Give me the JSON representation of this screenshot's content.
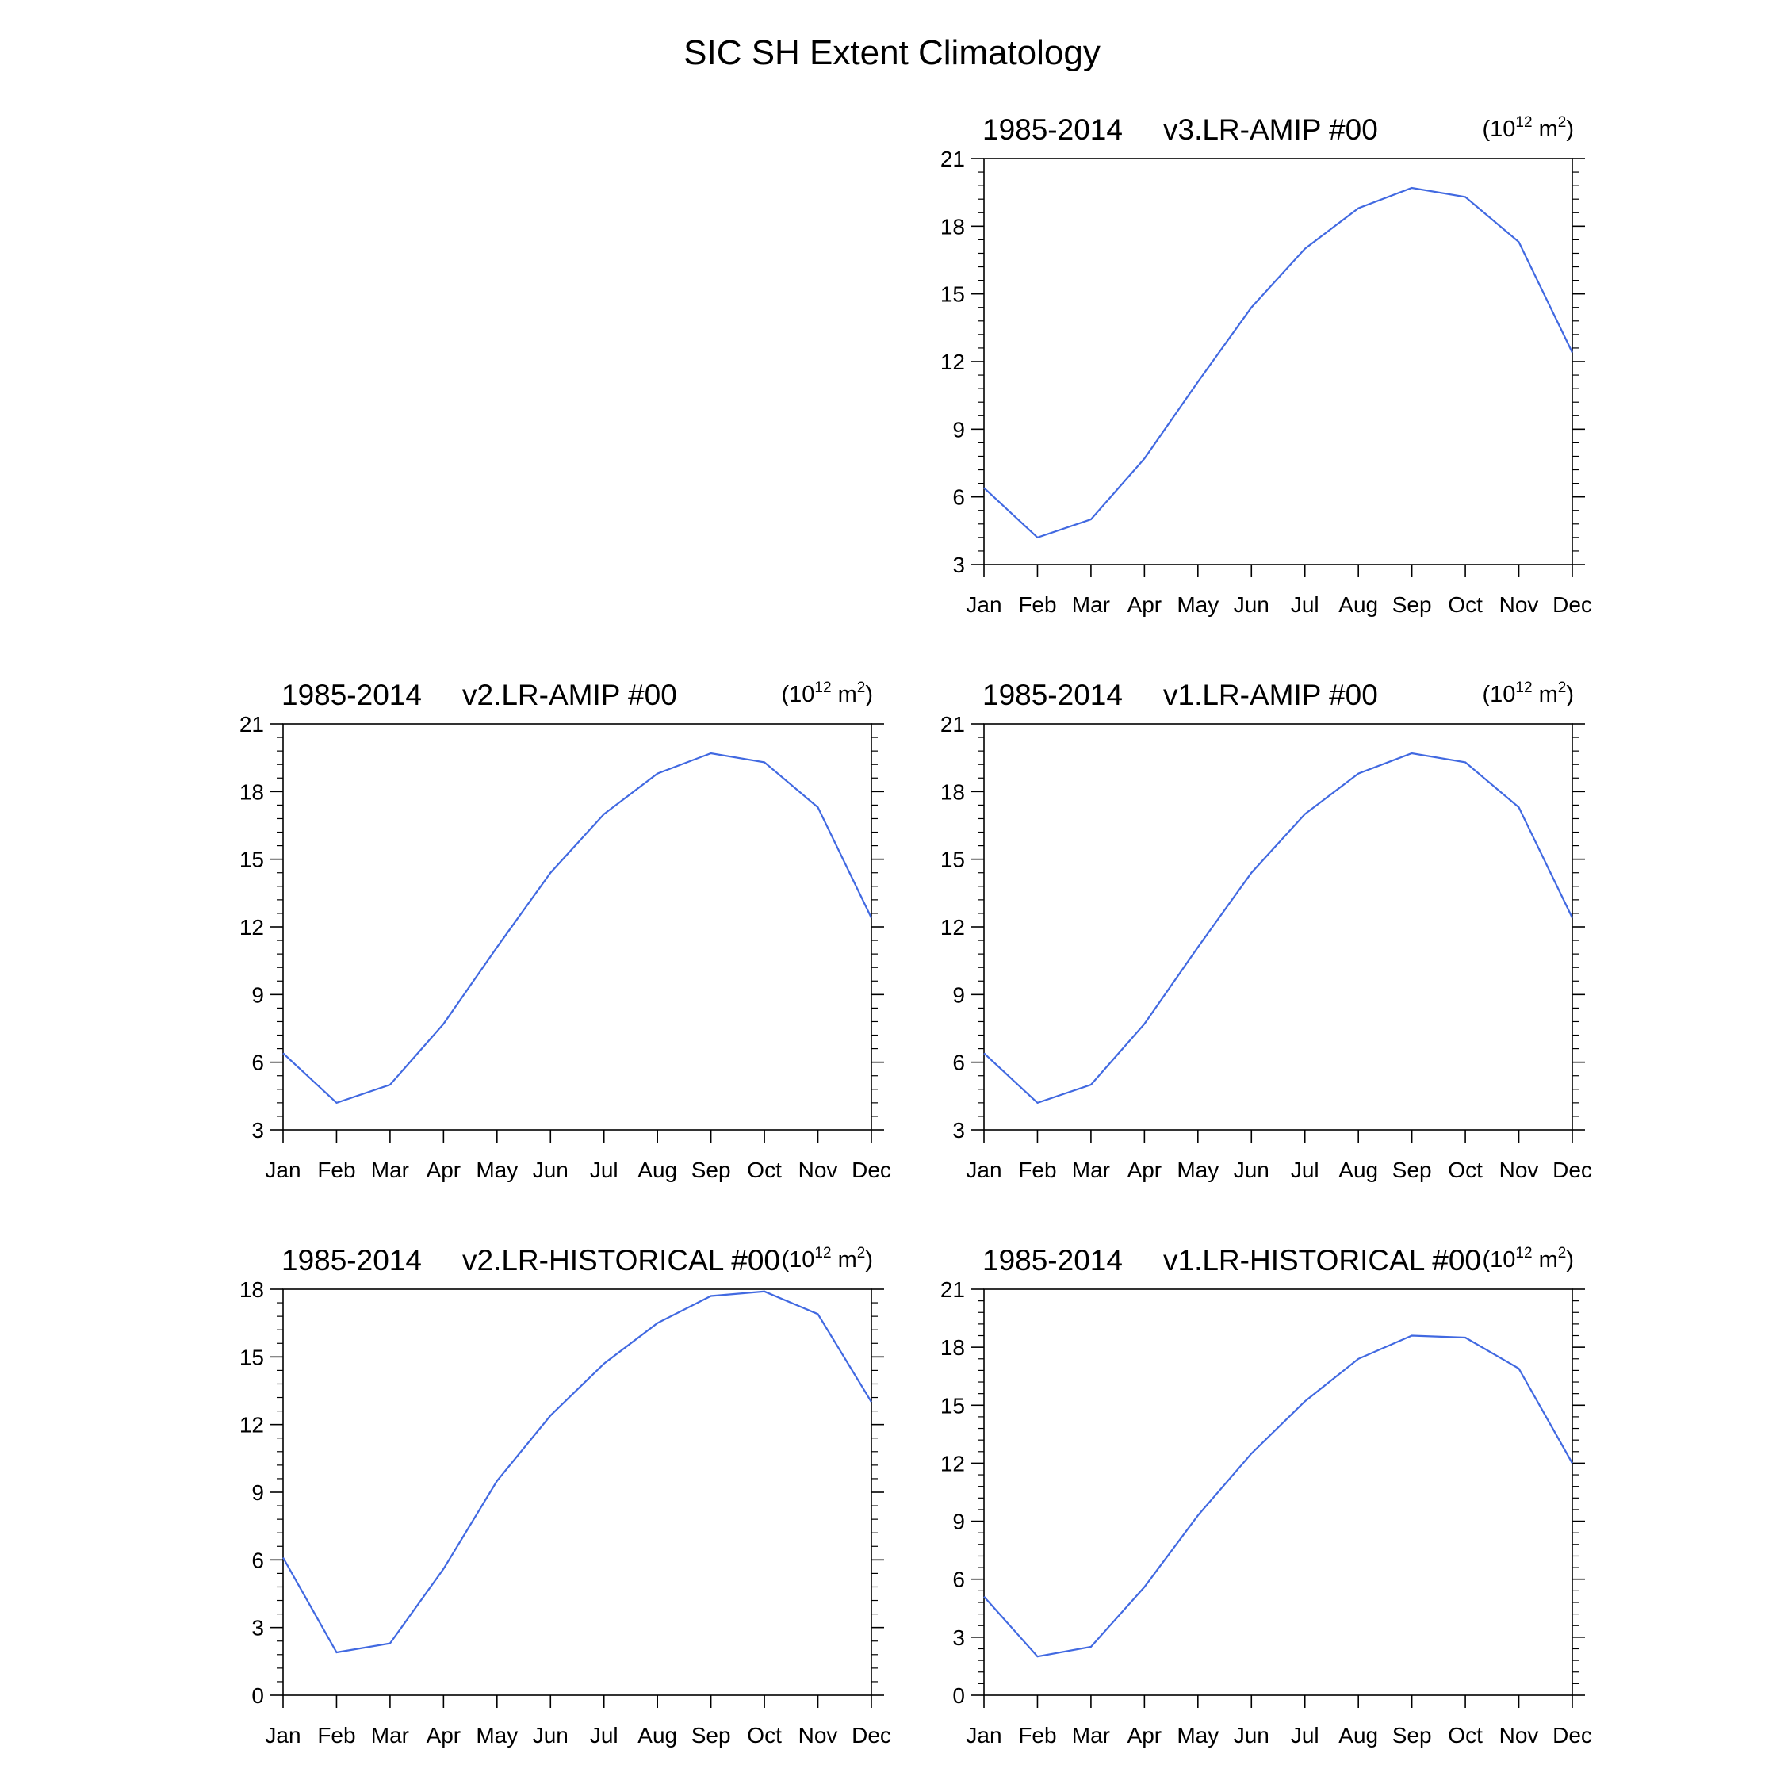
{
  "figure": {
    "title": "SIC SH Extent Climatology"
  },
  "chart_data": [
    {
      "type": "line",
      "panel": "top-right",
      "period": "1985-2014",
      "case": "v3.LR-AMIP  #00",
      "units": "(10^12 m^2)",
      "units_parts": {
        "open": "(10",
        "exp": "12",
        "mid": " m",
        "exp2": "2",
        "close": ")"
      },
      "categories": [
        "Jan",
        "Feb",
        "Mar",
        "Apr",
        "May",
        "Jun",
        "Jul",
        "Aug",
        "Sep",
        "Oct",
        "Nov",
        "Dec"
      ],
      "series": [
        {
          "values": [
            6.4,
            4.2,
            5.0,
            7.7,
            11.1,
            14.4,
            17.0,
            18.8,
            19.7,
            19.3,
            17.3,
            12.4
          ],
          "color": "#4169e1"
        }
      ],
      "ylim": [
        3,
        21
      ],
      "yticks": [
        3,
        6,
        9,
        12,
        15,
        18,
        21
      ],
      "grid": false,
      "legend": "none"
    },
    {
      "type": "line",
      "panel": "middle-left",
      "period": "1985-2014",
      "case": "v2.LR-AMIP  #00",
      "units": "(10^12 m^2)",
      "units_parts": {
        "open": "(10",
        "exp": "12",
        "mid": " m",
        "exp2": "2",
        "close": ")"
      },
      "categories": [
        "Jan",
        "Feb",
        "Mar",
        "Apr",
        "May",
        "Jun",
        "Jul",
        "Aug",
        "Sep",
        "Oct",
        "Nov",
        "Dec"
      ],
      "series": [
        {
          "values": [
            6.4,
            4.2,
            5.0,
            7.7,
            11.1,
            14.4,
            17.0,
            18.8,
            19.7,
            19.3,
            17.3,
            12.4
          ],
          "color": "#4169e1"
        }
      ],
      "ylim": [
        3,
        21
      ],
      "yticks": [
        3,
        6,
        9,
        12,
        15,
        18,
        21
      ],
      "grid": false,
      "legend": "none"
    },
    {
      "type": "line",
      "panel": "middle-right",
      "period": "1985-2014",
      "case": "v1.LR-AMIP  #00",
      "units": "(10^12 m^2)",
      "units_parts": {
        "open": "(10",
        "exp": "12",
        "mid": " m",
        "exp2": "2",
        "close": ")"
      },
      "categories": [
        "Jan",
        "Feb",
        "Mar",
        "Apr",
        "May",
        "Jun",
        "Jul",
        "Aug",
        "Sep",
        "Oct",
        "Nov",
        "Dec"
      ],
      "series": [
        {
          "values": [
            6.4,
            4.2,
            5.0,
            7.7,
            11.1,
            14.4,
            17.0,
            18.8,
            19.7,
            19.3,
            17.3,
            12.4
          ],
          "color": "#4169e1"
        }
      ],
      "ylim": [
        3,
        21
      ],
      "yticks": [
        3,
        6,
        9,
        12,
        15,
        18,
        21
      ],
      "grid": false,
      "legend": "none"
    },
    {
      "type": "line",
      "panel": "bottom-left",
      "period": "1985-2014",
      "case": "v2.LR-HISTORICAL  #00",
      "units": "(10^12 m^2)",
      "units_parts": {
        "open": "(10",
        "exp": "12",
        "mid": " m",
        "exp2": "2",
        "close": ")"
      },
      "categories": [
        "Jan",
        "Feb",
        "Mar",
        "Apr",
        "May",
        "Jun",
        "Jul",
        "Aug",
        "Sep",
        "Oct",
        "Nov",
        "Dec"
      ],
      "series": [
        {
          "values": [
            6.1,
            1.9,
            2.3,
            5.6,
            9.5,
            12.4,
            14.7,
            16.5,
            17.7,
            17.9,
            16.9,
            13.0
          ],
          "color": "#4169e1"
        }
      ],
      "ylim": [
        0,
        18
      ],
      "yticks": [
        0,
        3,
        6,
        9,
        12,
        15,
        18
      ],
      "grid": false,
      "legend": "none"
    },
    {
      "type": "line",
      "panel": "bottom-right",
      "period": "1985-2014",
      "case": "v1.LR-HISTORICAL  #00",
      "units": "(10^12 m^2)",
      "units_parts": {
        "open": "(10",
        "exp": "12",
        "mid": " m",
        "exp2": "2",
        "close": ")"
      },
      "categories": [
        "Jan",
        "Feb",
        "Mar",
        "Apr",
        "May",
        "Jun",
        "Jul",
        "Aug",
        "Sep",
        "Oct",
        "Nov",
        "Dec"
      ],
      "series": [
        {
          "values": [
            5.1,
            2.0,
            2.5,
            5.6,
            9.3,
            12.5,
            15.2,
            17.4,
            18.6,
            18.5,
            16.9,
            12.0
          ],
          "color": "#4169e1"
        }
      ],
      "ylim": [
        0,
        21
      ],
      "yticks": [
        0,
        3,
        6,
        9,
        12,
        15,
        18,
        21
      ],
      "grid": false,
      "legend": "none"
    }
  ]
}
